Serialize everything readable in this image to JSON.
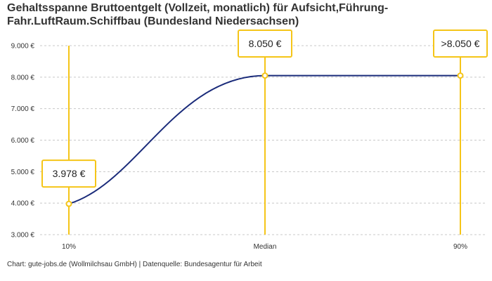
{
  "title": "Gehaltsspanne Bruttoentgelt (Vollzeit, monatlich) für Aufsicht,Führung-Fahr.LuftRaum.Schiffbau (Bundesland Niedersachsen)",
  "footer": "Chart: gute-jobs.de (Wollmilchsau GmbH) | Datenquelle: Bundesagentur für Arbeit",
  "colors": {
    "line": "#1a2b7a",
    "accent": "#f5c518",
    "grid": "#c8c8c8"
  },
  "chart_data": {
    "type": "line",
    "title": "Gehaltsspanne Bruttoentgelt (Vollzeit, monatlich) für Aufsicht,Führung-Fahr.LuftRaum.Schiffbau (Bundesland Niedersachsen)",
    "xlabel": "",
    "ylabel": "",
    "categories": [
      "10%",
      "Median",
      "90%"
    ],
    "values": [
      3978,
      8050,
      8050
    ],
    "ylim": [
      3000,
      9000
    ],
    "yticks": [
      {
        "value": 9000,
        "label": "9.000 €"
      },
      {
        "value": 8000,
        "label": "8.000 €"
      },
      {
        "value": 7000,
        "label": "7.000 €"
      },
      {
        "value": 6000,
        "label": "6.000 €"
      },
      {
        "value": 5000,
        "label": "5.000 €"
      },
      {
        "value": 4000,
        "label": "4.000 €"
      },
      {
        "value": 3000,
        "label": "3.000 €"
      }
    ],
    "callouts": [
      "3.978 €",
      "8.050 €",
      ">8.050 €"
    ],
    "grid": true,
    "legend": "none"
  }
}
